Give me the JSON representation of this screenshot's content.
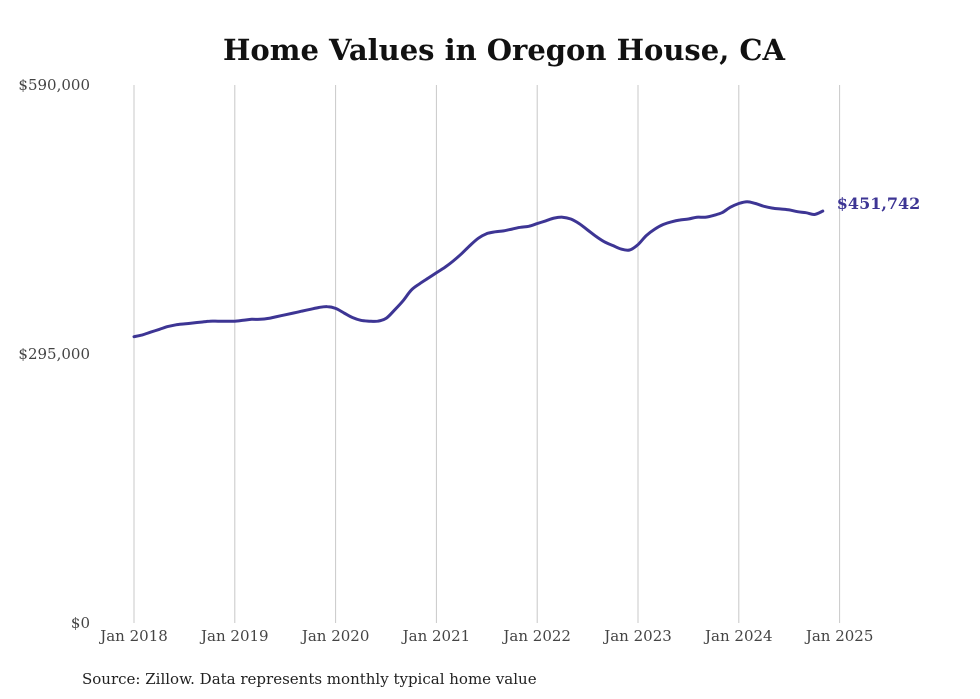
{
  "chart_data": {
    "type": "line",
    "title": "Home Values in Oregon House, CA",
    "source": "Source: Zillow. Data represents monthly typical home value",
    "y_min": 0,
    "y_max": 590000,
    "yticks": [
      {
        "value": 590000,
        "label": "$590,000"
      },
      {
        "value": 295000,
        "label": "$295,000"
      },
      {
        "value": 0,
        "label": "$0"
      }
    ],
    "xticks": [
      "Jan 2018",
      "Jan 2019",
      "Jan 2020",
      "Jan 2021",
      "Jan 2022",
      "Jan 2023",
      "Jan 2024",
      "Jan 2025"
    ],
    "grid": "vertical",
    "color": "#3d3594",
    "end_label": "$451,742",
    "series": [
      {
        "x_start": "Jan 2018",
        "frequency": "monthly",
        "values": [
          314000,
          316000,
          319000,
          322000,
          325000,
          327000,
          328000,
          329000,
          330000,
          331000,
          331000,
          331000,
          331000,
          332000,
          333000,
          333000,
          334000,
          336000,
          338000,
          340000,
          342000,
          344000,
          346000,
          347000,
          345000,
          340000,
          335000,
          332000,
          331000,
          331000,
          334000,
          343000,
          353000,
          365000,
          372000,
          378000,
          384000,
          390000,
          397000,
          405000,
          414000,
          422000,
          427000,
          429000,
          430000,
          432000,
          434000,
          435000,
          438000,
          441000,
          444000,
          445000,
          443000,
          438000,
          431000,
          424000,
          418000,
          414000,
          410000,
          409000,
          415000,
          425000,
          432000,
          437000,
          440000,
          442000,
          443000,
          445000,
          445000,
          447000,
          450000,
          456000,
          460000,
          462000,
          460000,
          457000,
          455000,
          454000,
          453000,
          451000,
          450000,
          448000,
          451742
        ]
      }
    ]
  }
}
